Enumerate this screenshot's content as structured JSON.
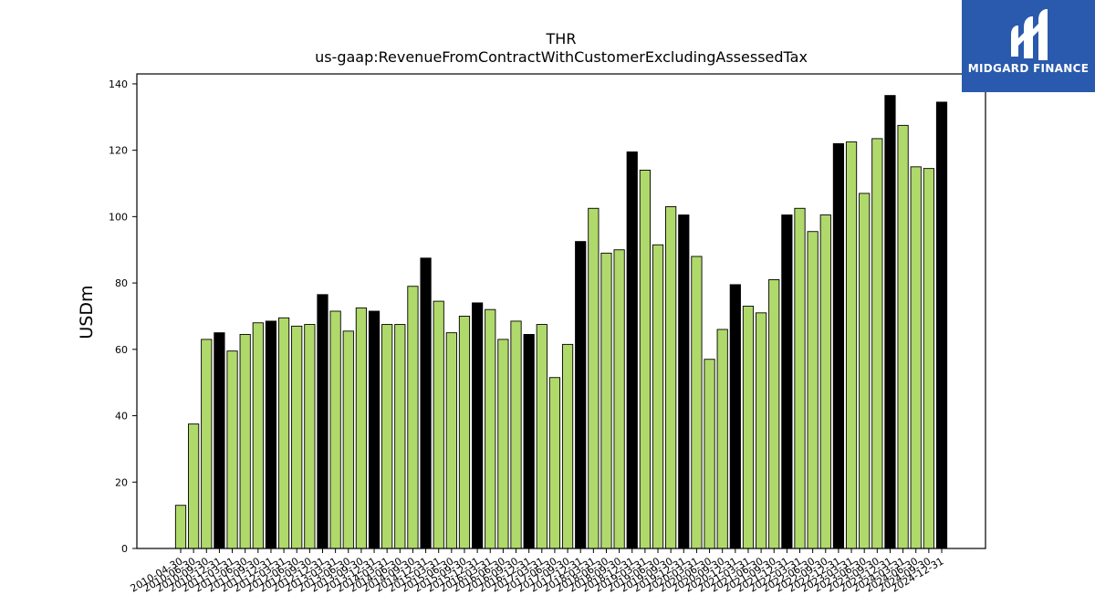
{
  "brand": {
    "name": "MIDGARD FINANCE"
  },
  "colors": {
    "annual": "#000000",
    "quarterly": "#b0d96b",
    "brand_bg": "#2a5aad"
  },
  "chart_data": {
    "type": "bar",
    "title": "THR",
    "subtitle": "us-gaap:RevenueFromContractWithCustomerExcludingAssessedTax",
    "xlabel": "",
    "ylabel": "USDm",
    "ylim": [
      0,
      143
    ],
    "yticks": [
      0,
      20,
      40,
      60,
      80,
      100,
      120,
      140
    ],
    "grid": false,
    "legend": "none",
    "categories": [
      "2010-04-30",
      "2010-06-30",
      "2010-09-30",
      "2010-12-31",
      "2011-03-31",
      "2011-06-30",
      "2011-09-30",
      "2011-12-31",
      "2012-03-31",
      "2012-06-30",
      "2012-09-30",
      "2012-12-31",
      "2013-03-31",
      "2013-06-30",
      "2013-09-30",
      "2013-12-31",
      "2014-03-31",
      "2014-06-30",
      "2014-09-30",
      "2014-12-31",
      "2015-03-31",
      "2015-06-30",
      "2015-09-30",
      "2015-12-31",
      "2016-03-31",
      "2016-06-30",
      "2016-09-30",
      "2016-12-31",
      "2017-03-31",
      "2017-06-30",
      "2017-09-30",
      "2017-12-31",
      "2018-03-31",
      "2018-06-30",
      "2018-09-30",
      "2018-12-31",
      "2019-03-31",
      "2019-06-30",
      "2019-09-30",
      "2019-12-31",
      "2020-03-31",
      "2020-06-30",
      "2020-09-30",
      "2020-12-31",
      "2021-03-31",
      "2021-06-30",
      "2021-09-30",
      "2021-12-31",
      "2022-03-31",
      "2022-06-30",
      "2022-09-30",
      "2022-12-31",
      "2023-03-31",
      "2023-06-30",
      "2023-09-30",
      "2023-12-31",
      "2024-03-31",
      "2024-06-30",
      "2024-09-30",
      "2024-12-31"
    ],
    "values": [
      13,
      37.5,
      63,
      65,
      59.5,
      64.5,
      68,
      68.5,
      69.5,
      67,
      67.5,
      76.5,
      71.5,
      65.5,
      72.5,
      71.5,
      67.5,
      67.5,
      79,
      87.5,
      74.5,
      65,
      70,
      74,
      72,
      63,
      68.5,
      64.5,
      67.5,
      51.5,
      61.5,
      92.5,
      102.5,
      89,
      90,
      119.5,
      114,
      91.5,
      103,
      100.5,
      88,
      57,
      66,
      79.5,
      73,
      71,
      81,
      100.5,
      102.5,
      95.5,
      100.5,
      122,
      122.5,
      107,
      123.5,
      136.5,
      127.5,
      115,
      114.5,
      134.5
    ],
    "annual": [
      false,
      false,
      false,
      true,
      false,
      false,
      false,
      true,
      false,
      false,
      false,
      true,
      false,
      false,
      false,
      true,
      false,
      false,
      false,
      true,
      false,
      false,
      false,
      true,
      false,
      false,
      false,
      true,
      false,
      false,
      false,
      true,
      false,
      false,
      false,
      true,
      false,
      false,
      false,
      true,
      false,
      false,
      false,
      true,
      false,
      false,
      false,
      true,
      false,
      false,
      false,
      true,
      false,
      false,
      false,
      true,
      false,
      false,
      false,
      true
    ]
  }
}
